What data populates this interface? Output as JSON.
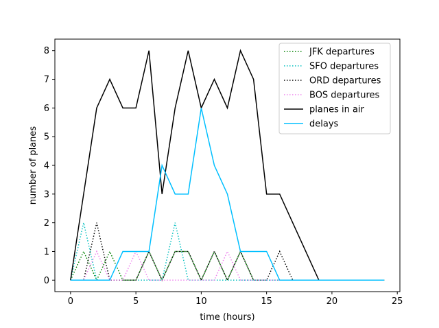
{
  "chart_data": {
    "type": "line",
    "xlabel": "time (hours)",
    "ylabel": "number of planes",
    "xlim": [
      -1.2,
      25.2
    ],
    "ylim": [
      -0.4,
      8.4
    ],
    "xticks": [
      0,
      5,
      10,
      15,
      20,
      25
    ],
    "yticks": [
      0,
      1,
      2,
      3,
      4,
      5,
      6,
      7,
      8
    ],
    "grid": false,
    "legend_position": "top-right",
    "x": [
      0,
      1,
      2,
      3,
      4,
      5,
      6,
      7,
      8,
      9,
      10,
      11,
      12,
      13,
      14,
      15,
      16,
      17,
      18,
      19,
      20,
      21,
      22,
      23,
      24
    ],
    "series": [
      {
        "name": "JFK departures",
        "color": "#008000",
        "style": "dotted",
        "values": [
          0,
          1,
          0,
          1,
          0,
          0,
          1,
          0,
          1,
          1,
          0,
          1,
          0,
          1,
          0,
          0,
          0,
          0,
          0,
          0,
          0,
          0,
          0,
          0,
          0
        ]
      },
      {
        "name": "SFO departures",
        "color": "#00bfbf",
        "style": "dotted",
        "values": [
          0,
          2,
          0,
          0,
          0,
          0,
          0,
          0,
          2,
          0,
          0,
          0,
          0,
          0,
          0,
          0,
          0,
          0,
          0,
          0,
          0,
          0,
          0,
          0,
          0
        ]
      },
      {
        "name": "ORD departures",
        "color": "#000000",
        "style": "dotted",
        "values": [
          0,
          0,
          2,
          0,
          0,
          0,
          1,
          0,
          1,
          1,
          0,
          1,
          0,
          1,
          0,
          0,
          1,
          0,
          0,
          0,
          0,
          0,
          0,
          0,
          0
        ]
      },
      {
        "name": "BOS departures",
        "color": "#ee82ee",
        "style": "dotted",
        "values": [
          0,
          0,
          1,
          0,
          0,
          1,
          0,
          0,
          0,
          0,
          0,
          0,
          1,
          0,
          0,
          0,
          0,
          0,
          0,
          0,
          0,
          0,
          0,
          0,
          0
        ]
      },
      {
        "name": "planes in air",
        "color": "#000000",
        "style": "solid",
        "values": [
          0,
          3,
          6,
          7,
          6,
          6,
          8,
          3,
          6,
          8,
          6,
          7,
          6,
          8,
          7,
          3,
          3,
          2,
          1,
          0,
          0,
          0,
          0,
          0,
          0
        ]
      },
      {
        "name": "delays",
        "color": "#00bfff",
        "style": "solid",
        "values": [
          0,
          0,
          0,
          0,
          1,
          1,
          1,
          4,
          3,
          3,
          6,
          4,
          3,
          1,
          1,
          1,
          0,
          0,
          0,
          0,
          0,
          0,
          0,
          0,
          0
        ]
      }
    ]
  }
}
